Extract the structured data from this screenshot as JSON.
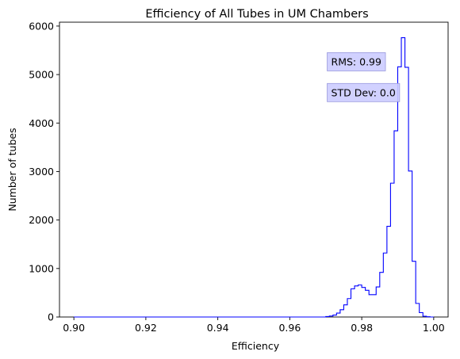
{
  "chart_data": {
    "type": "histogram",
    "title": "Efficiency of All Tubes in UM Chambers",
    "xlabel": "Efficiency",
    "ylabel": "Number of tubes",
    "xlim": [
      0.896,
      1.004
    ],
    "ylim": [
      0,
      6080
    ],
    "x_ticks": [
      0.9,
      0.92,
      0.94,
      0.96,
      0.98,
      1.0
    ],
    "x_tick_labels": [
      "0.90",
      "0.92",
      "0.94",
      "0.96",
      "0.98",
      "1.00"
    ],
    "y_ticks": [
      0,
      1000,
      2000,
      3000,
      4000,
      5000,
      6000
    ],
    "y_tick_labels": [
      "0",
      "1000",
      "2000",
      "3000",
      "4000",
      "5000",
      "6000"
    ],
    "grid": false,
    "bin_edges_start": 0.9,
    "bin_width": 0.001,
    "values": [
      0,
      0,
      0,
      0,
      0,
      0,
      0,
      0,
      0,
      0,
      0,
      0,
      0,
      0,
      0,
      0,
      0,
      0,
      0,
      0,
      0,
      0,
      0,
      0,
      0,
      0,
      0,
      0,
      0,
      0,
      0,
      0,
      0,
      0,
      0,
      0,
      0,
      0,
      0,
      0,
      0,
      0,
      0,
      0,
      0,
      0,
      0,
      0,
      0,
      0,
      0,
      0,
      0,
      0,
      0,
      0,
      0,
      0,
      0,
      0,
      0,
      0,
      0,
      0,
      0,
      0,
      0,
      0,
      0,
      0,
      10,
      20,
      40,
      80,
      150,
      250,
      380,
      580,
      640,
      660,
      610,
      550,
      460,
      460,
      620,
      920,
      1320,
      1870,
      2760,
      3840,
      5160,
      5760,
      5150,
      3010,
      1150,
      280,
      90,
      15,
      5,
      0
    ],
    "series": [
      {
        "color": "#0000ff"
      }
    ],
    "annotations": [
      {
        "text": "RMS: 0.99",
        "x": 0.9715,
        "y": 5190
      },
      {
        "text": "STD Dev: 0.0",
        "x": 0.9715,
        "y": 4555
      }
    ],
    "annotation_box_color": "#ccccff"
  }
}
